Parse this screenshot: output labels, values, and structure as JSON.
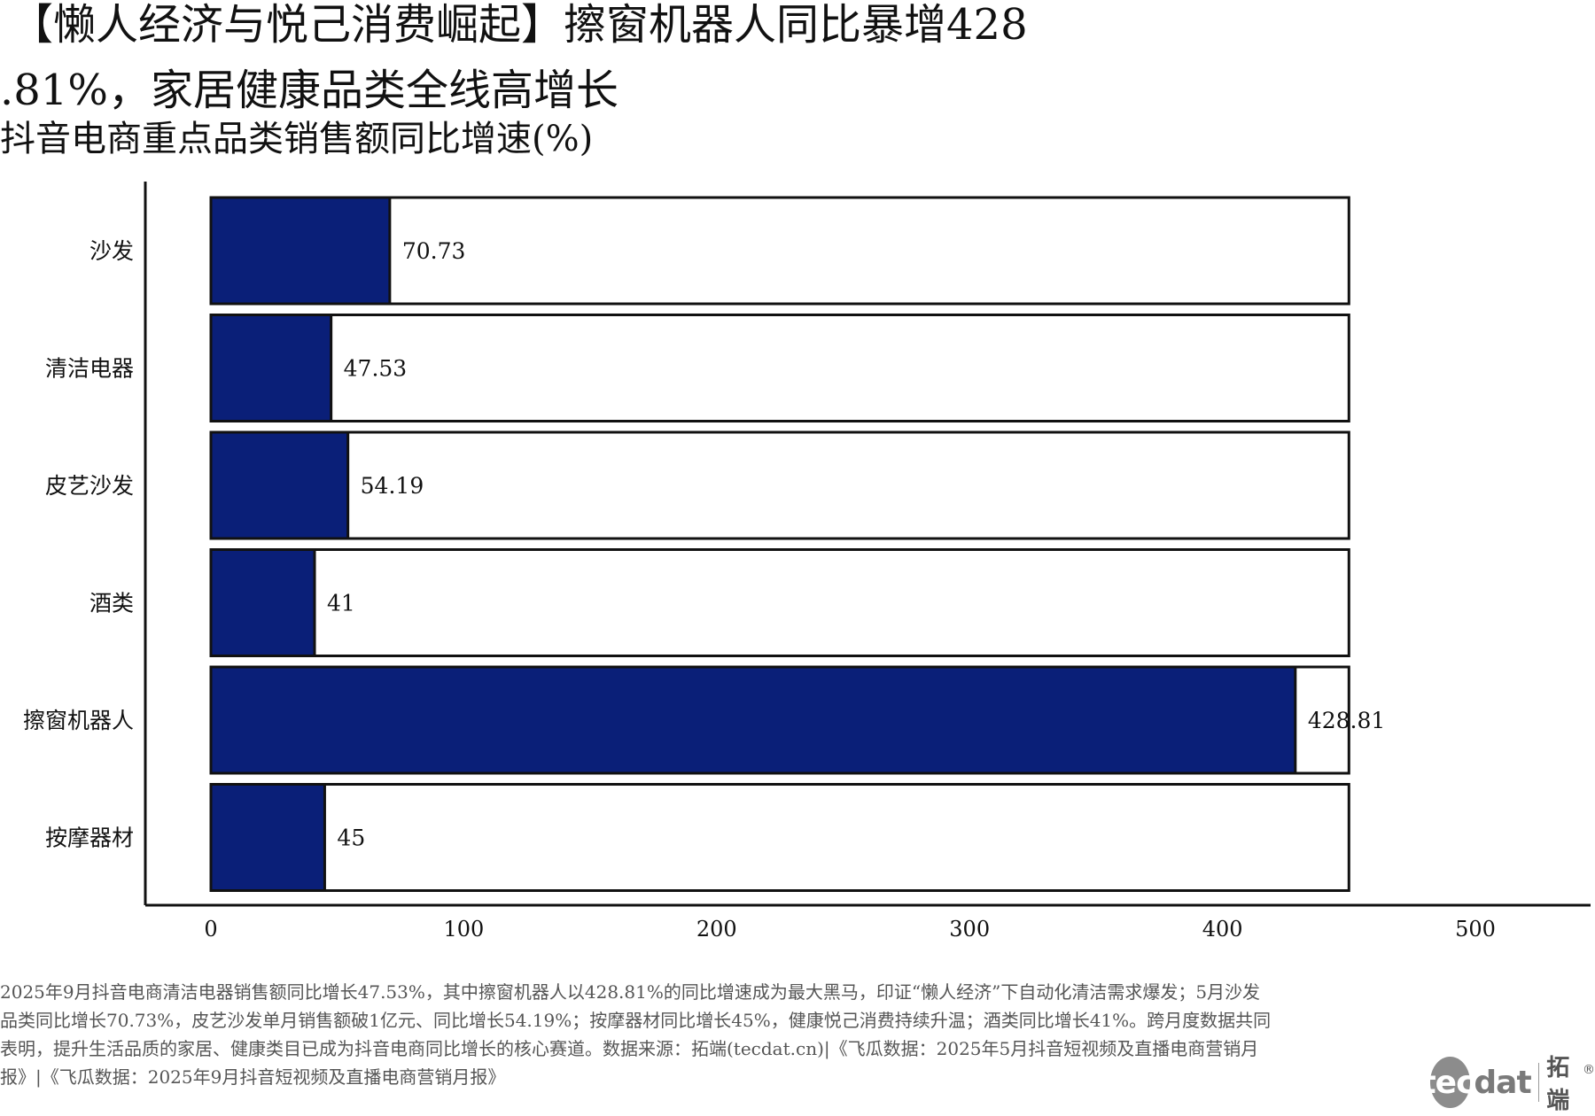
{
  "title_line1": "【懒人经济与悦己消费崛起】擦窗机器人同比暴增428",
  "title_line2": ".81%，家居健康品类全线高增长",
  "chart_data": {
    "type": "bar",
    "orientation": "horizontal",
    "title": "抖音电商重点品类销售额同比增速(%)",
    "categories": [
      "沙发",
      "清洁电器",
      "皮艺沙发",
      "酒类",
      "擦窗机器人",
      "按摩器材"
    ],
    "values": [
      70.73,
      47.53,
      54.19,
      41,
      428.81,
      45
    ],
    "value_labels": [
      "70.73",
      "47.53",
      "54.19",
      "41",
      "428.81",
      "45"
    ],
    "background_bar_max": 450,
    "xlim": [
      -25,
      545
    ],
    "xticks": [
      0,
      100,
      200,
      300,
      400,
      500
    ],
    "xtick_labels": [
      "0",
      "100",
      "200",
      "300",
      "400",
      "500"
    ],
    "xlabel": "",
    "ylabel": "",
    "grid": false,
    "legend": "none",
    "bar_color": "#0a1f78",
    "background_bar_color": "#ffffff",
    "outline_color": "#111111"
  },
  "note": "2025年9月抖音电商清洁电器销售额同比增长47.53%，其中擦窗机器人以428.81%的同比增速成为最大黑马，印证“懒人经济”下自动化清洁需求爆发；5月沙发品类同比增长70.73%，皮艺沙发单月销售额破1亿元、同比增长54.19%；按摩器材同比增长45%，健康悦己消费持续升温；酒类同比增长41%。跨月度数据共同表明，提升生活品质的家居、健康类目已成为抖音电商同比增长的核心赛道。数据来源：拓端(tecdat.cn)|《飞瓜数据：2025年5月抖音短视频及直播电商营销月报》|《飞瓜数据：2025年9月抖音短视频及直播电商营销月报》",
  "logo": {
    "tec": "tec",
    "dat": "dat",
    "cn": "拓端",
    "reg": "®"
  }
}
